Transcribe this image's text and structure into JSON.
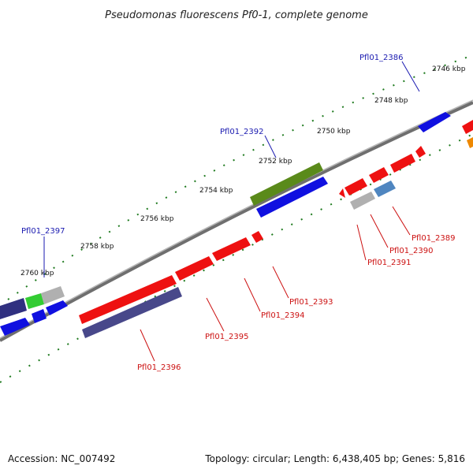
{
  "title": "Pseudomonas fluorescens Pf0-1, complete genome",
  "footer": {
    "accession": "Accession: NC_007492",
    "summary": "Topology: circular; Length: 6,438,405 bp; Genes: 5,816"
  },
  "ticks": [
    "2746 kbp",
    "2748 kbp",
    "2750 kbp",
    "2752 kbp",
    "2754 kbp",
    "2756 kbp",
    "2758 kbp",
    "2760 kbp"
  ],
  "gene_labels": {
    "forward": [
      "Pfl01_2386",
      "Pfl01_2392",
      "Pfl01_2397"
    ],
    "reverse": [
      "Pfl01_2389",
      "Pfl01_2390",
      "Pfl01_2391",
      "Pfl01_2393",
      "Pfl01_2394",
      "Pfl01_2395",
      "Pfl01_2396"
    ]
  },
  "colors": {
    "forward_label": "#1a1ab0",
    "reverse_label": "#cc1111",
    "backbone": "#808080",
    "tick_dots": "#1e7a1e"
  }
}
